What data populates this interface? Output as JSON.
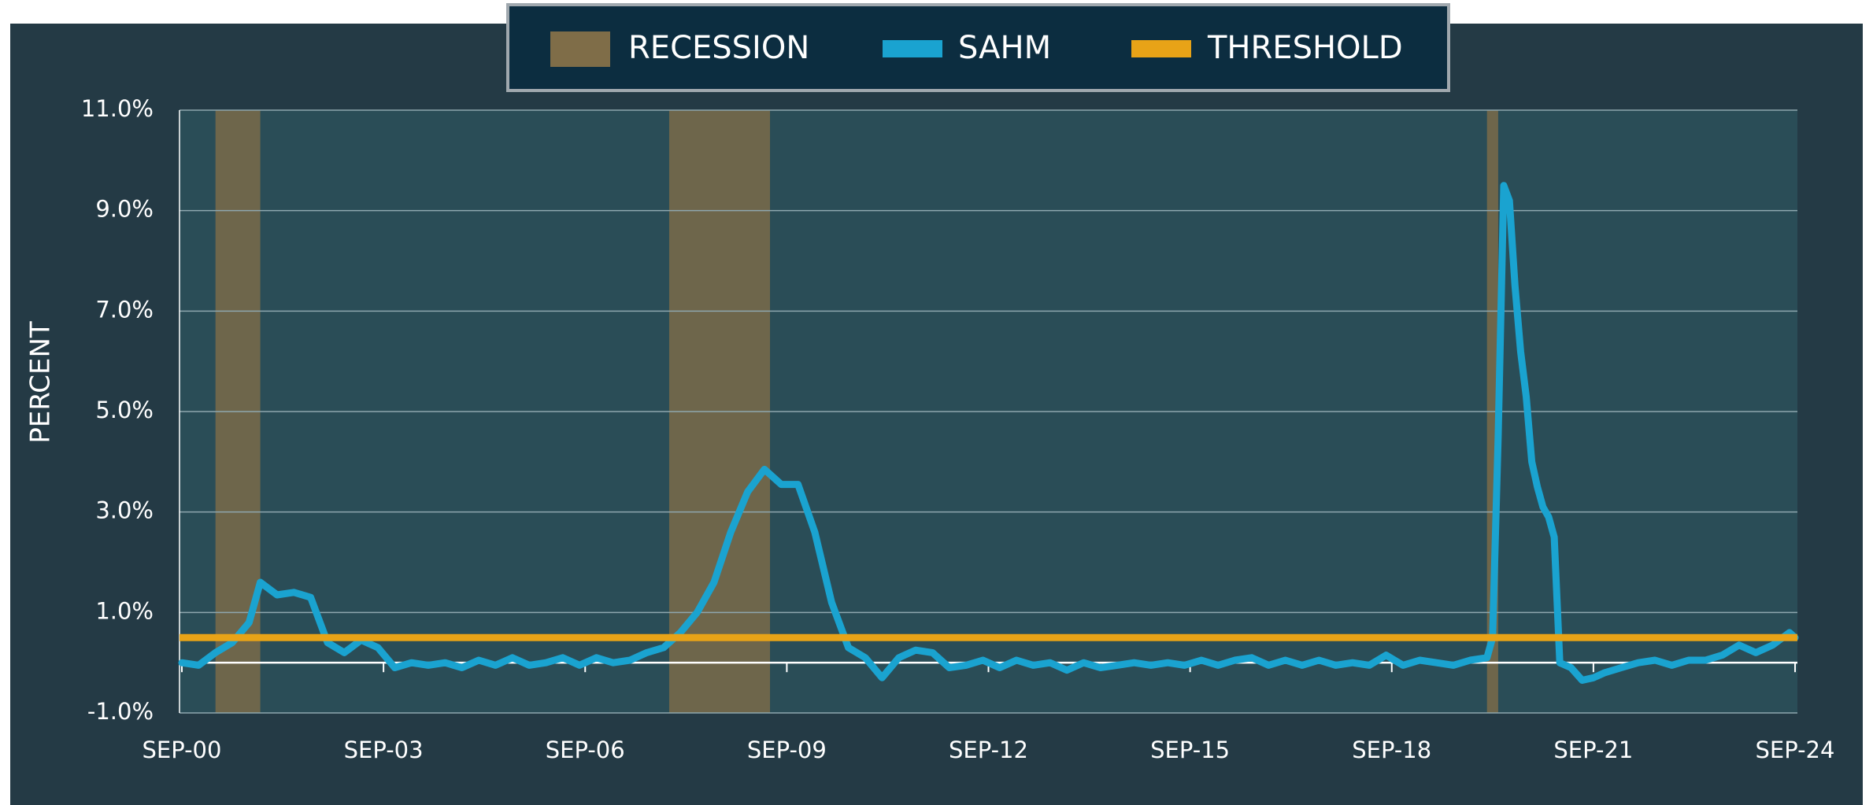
{
  "chart_data": {
    "type": "line",
    "ylabel": "PERCENT",
    "xlim": [
      "2000-09",
      "2024-09"
    ],
    "xticks": [
      {
        "value": "2000-09",
        "label": "SEP-00"
      },
      {
        "value": "2003-09",
        "label": "SEP-03"
      },
      {
        "value": "2006-09",
        "label": "SEP-06"
      },
      {
        "value": "2009-09",
        "label": "SEP-09"
      },
      {
        "value": "2012-09",
        "label": "SEP-12"
      },
      {
        "value": "2015-09",
        "label": "SEP-15"
      },
      {
        "value": "2018-09",
        "label": "SEP-18"
      },
      {
        "value": "2021-09",
        "label": "SEP-21"
      },
      {
        "value": "2024-09",
        "label": "SEP-24"
      }
    ],
    "ylim": [
      -1,
      11
    ],
    "yticks": [
      {
        "value": -1,
        "label": "-1.0%"
      },
      {
        "value": 1,
        "label": "1.0%"
      },
      {
        "value": 3,
        "label": "3.0%"
      },
      {
        "value": 5,
        "label": "5.0%"
      },
      {
        "value": 7,
        "label": "7.0%"
      },
      {
        "value": 9,
        "label": "9.0%"
      },
      {
        "value": 11,
        "label": "11.0%"
      }
    ],
    "grid": true,
    "legend": "top",
    "series": [
      {
        "name": "RECESSION",
        "color": "#7f6d48",
        "ranges": [
          {
            "start": "2001-03",
            "end": "2001-11"
          },
          {
            "start": "2007-12",
            "end": "2009-06"
          },
          {
            "start": "2020-02",
            "end": "2020-04"
          }
        ]
      },
      {
        "name": "SAHM",
        "color": "#1aa3d0",
        "x": [
          "2000-09",
          "2000-12",
          "2001-03",
          "2001-06",
          "2001-09",
          "2001-11",
          "2002-02",
          "2002-05",
          "2002-08",
          "2002-11",
          "2003-02",
          "2003-05",
          "2003-08",
          "2003-11",
          "2004-02",
          "2004-05",
          "2004-08",
          "2004-11",
          "2005-02",
          "2005-05",
          "2005-08",
          "2005-11",
          "2006-02",
          "2006-05",
          "2006-08",
          "2006-11",
          "2007-02",
          "2007-05",
          "2007-08",
          "2007-11",
          "2008-02",
          "2008-05",
          "2008-08",
          "2008-11",
          "2009-02",
          "2009-05",
          "2009-08",
          "2009-11",
          "2010-02",
          "2010-05",
          "2010-08",
          "2010-11",
          "2011-02",
          "2011-05",
          "2011-08",
          "2011-11",
          "2012-02",
          "2012-05",
          "2012-08",
          "2012-11",
          "2013-02",
          "2013-05",
          "2013-08",
          "2013-11",
          "2014-02",
          "2014-05",
          "2014-08",
          "2014-11",
          "2015-02",
          "2015-05",
          "2015-08",
          "2015-11",
          "2016-02",
          "2016-05",
          "2016-08",
          "2016-11",
          "2017-02",
          "2017-05",
          "2017-08",
          "2017-11",
          "2018-02",
          "2018-05",
          "2018-08",
          "2018-11",
          "2019-02",
          "2019-05",
          "2019-08",
          "2019-11",
          "2020-02",
          "2020-03",
          "2020-04",
          "2020-05",
          "2020-06",
          "2020-07",
          "2020-08",
          "2020-09",
          "2020-10",
          "2020-11",
          "2020-12",
          "2021-01",
          "2021-02",
          "2021-03",
          "2021-05",
          "2021-07",
          "2021-09",
          "2021-11",
          "2022-02",
          "2022-05",
          "2022-08",
          "2022-11",
          "2023-02",
          "2023-05",
          "2023-08",
          "2023-11",
          "2024-02",
          "2024-05",
          "2024-08",
          "2024-09"
        ],
        "values": [
          0.0,
          -0.05,
          0.2,
          0.4,
          0.8,
          1.6,
          1.35,
          1.4,
          1.3,
          0.4,
          0.2,
          0.45,
          0.3,
          -0.1,
          0.0,
          -0.05,
          0.0,
          -0.1,
          0.05,
          -0.05,
          0.1,
          -0.05,
          0.0,
          0.1,
          -0.05,
          0.1,
          0.0,
          0.05,
          0.2,
          0.3,
          0.6,
          1.0,
          1.6,
          2.6,
          3.4,
          3.85,
          3.55,
          3.55,
          2.6,
          1.2,
          0.3,
          0.1,
          -0.3,
          0.1,
          0.25,
          0.2,
          -0.1,
          -0.05,
          0.05,
          -0.1,
          0.05,
          -0.05,
          0.0,
          -0.15,
          0.0,
          -0.1,
          -0.05,
          0.0,
          -0.05,
          0.0,
          -0.05,
          0.05,
          -0.05,
          0.05,
          0.1,
          -0.05,
          0.05,
          -0.05,
          0.05,
          -0.05,
          0.0,
          -0.05,
          0.15,
          -0.05,
          0.05,
          0.0,
          -0.05,
          0.05,
          0.1,
          0.5,
          4.5,
          9.5,
          9.2,
          7.5,
          6.2,
          5.3,
          4.0,
          3.5,
          3.1,
          2.9,
          2.5,
          0.0,
          -0.1,
          -0.35,
          -0.3,
          -0.2,
          -0.1,
          0.0,
          0.05,
          -0.05,
          0.05,
          0.05,
          0.15,
          0.35,
          0.2,
          0.35,
          0.6,
          0.5
        ]
      },
      {
        "name": "THRESHOLD",
        "color": "#e8a317",
        "value": 0.5
      }
    ]
  }
}
